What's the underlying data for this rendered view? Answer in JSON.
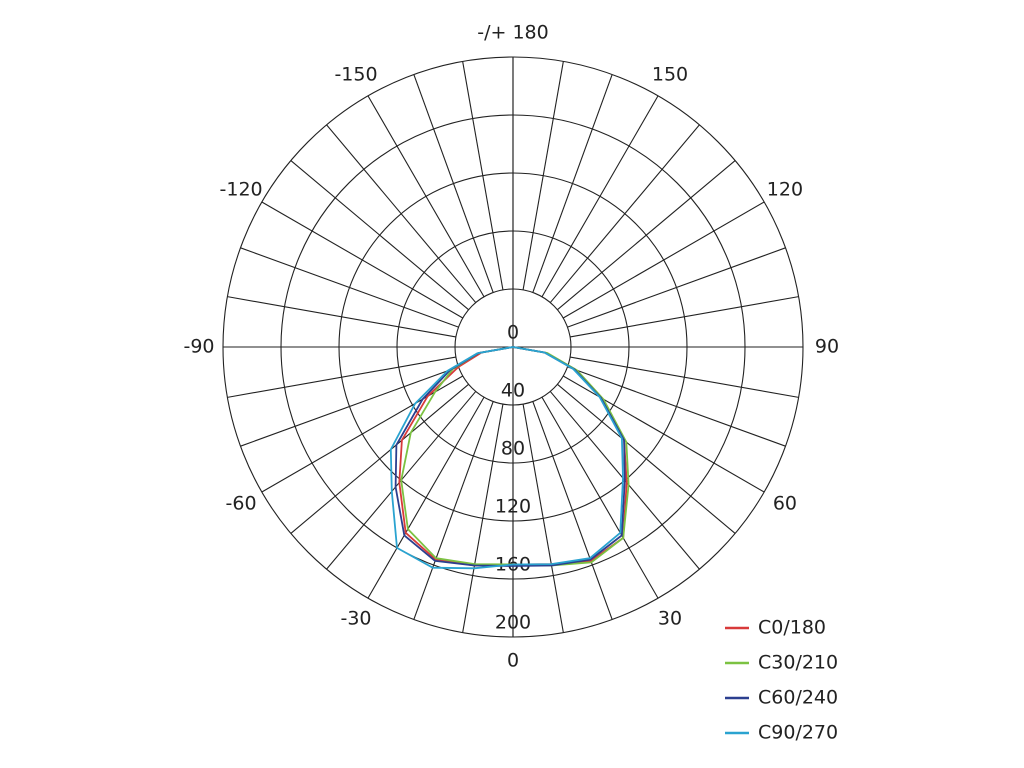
{
  "chart_data": {
    "type": "polar",
    "x": [
      -90,
      -80,
      -70,
      -60,
      -50,
      -40,
      -30,
      -20,
      -10,
      0,
      10,
      20,
      30,
      40,
      50,
      60,
      70,
      80,
      90
    ],
    "series": [
      {
        "name": "C0/180",
        "color": "#d83a3a",
        "values": [
          0,
          22,
          40,
          68,
          100,
          122,
          148,
          156,
          153,
          150,
          152,
          157,
          152,
          122,
          100,
          71,
          46,
          23,
          0
        ]
      },
      {
        "name": "C30/210",
        "color": "#7cc242",
        "values": [
          0,
          24,
          44,
          62,
          92,
          120,
          145,
          155,
          152,
          150,
          153,
          158,
          152,
          124,
          102,
          72,
          47,
          24,
          0
        ]
      },
      {
        "name": "C60/240",
        "color": "#2b3f8f",
        "values": [
          0,
          24,
          46,
          72,
          105,
          126,
          150,
          157,
          153,
          151,
          153,
          156,
          150,
          120,
          100,
          70,
          45,
          22,
          0
        ]
      },
      {
        "name": "C90/270",
        "color": "#2aa3d0",
        "values": [
          0,
          25,
          48,
          78,
          110,
          130,
          160,
          162,
          155,
          150,
          152,
          155,
          148,
          118,
          98,
          69,
          44,
          22,
          0
        ]
      }
    ],
    "rlim": [
      0,
      200
    ],
    "rticks": [
      0,
      40,
      80,
      120,
      160,
      200
    ],
    "thetaticks": [
      0,
      30,
      60,
      90,
      120,
      150,
      {
        "value": 180,
        "label": "-/+ 180"
      },
      -150,
      -120,
      -90,
      -60,
      -30
    ],
    "legend": "lower-right"
  }
}
